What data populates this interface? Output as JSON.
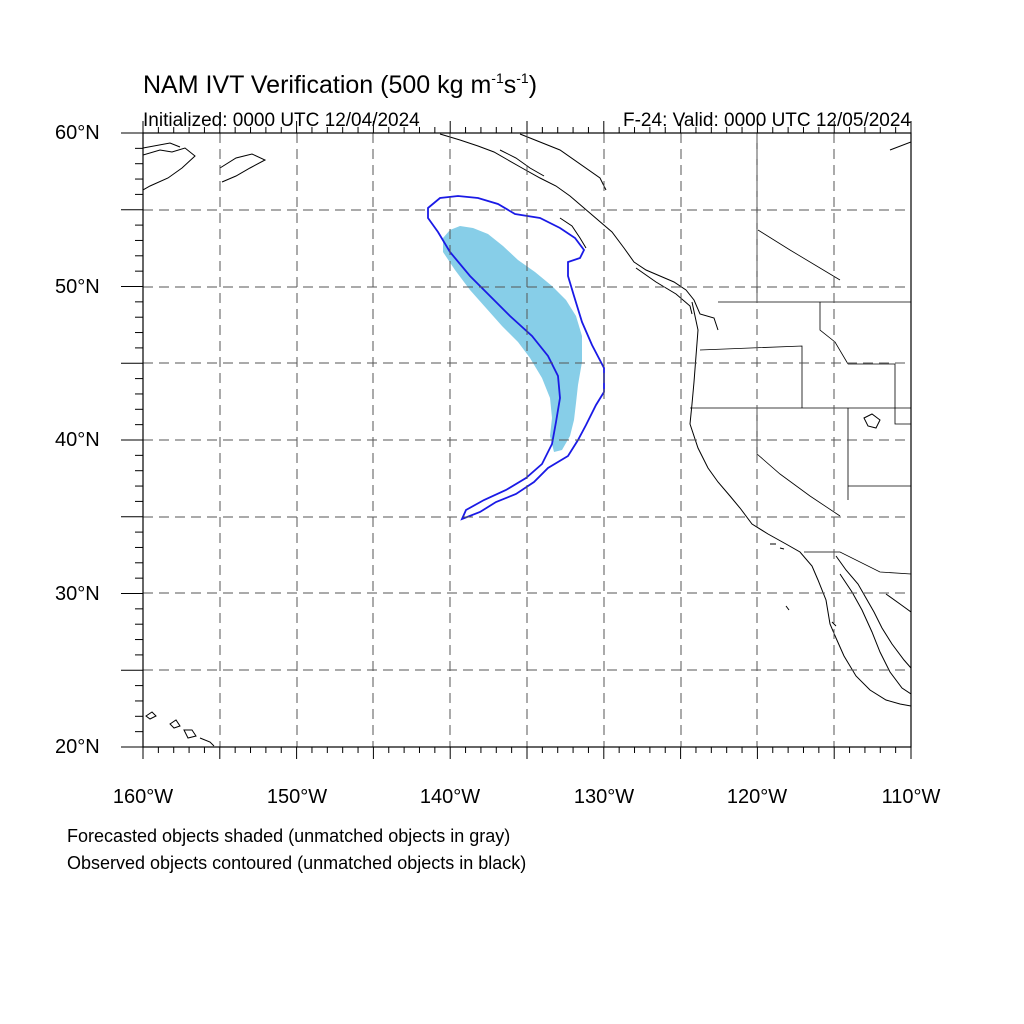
{
  "title": {
    "main": "NAM IVT Verification (500 kg m",
    "sup1": "-1",
    "mid": "s",
    "sup2": "-1",
    "end": ")"
  },
  "initialized": "Initialized: 0000 UTC 12/04/2024",
  "valid": "F-24: Valid: 0000 UTC 12/05/2024",
  "map": {
    "projection": "cylindrical-equidistant",
    "lon_range": [
      -160,
      -110
    ],
    "lat_range": [
      20,
      60
    ],
    "lat_labels": [
      "60°N",
      "50°N",
      "40°N",
      "30°N",
      "20°N"
    ],
    "lon_labels": [
      "160°W",
      "150°W",
      "140°W",
      "130°W",
      "120°W",
      "110°W"
    ],
    "grid_style": "dashed",
    "forecast_object_color": "#87CEE8",
    "observed_contour_color": "#1a1ae6"
  },
  "notes": [
    "Forecasted objects shaded (unmatched objects in gray)",
    "Observed objects contoured (unmatched objects in black)"
  ]
}
